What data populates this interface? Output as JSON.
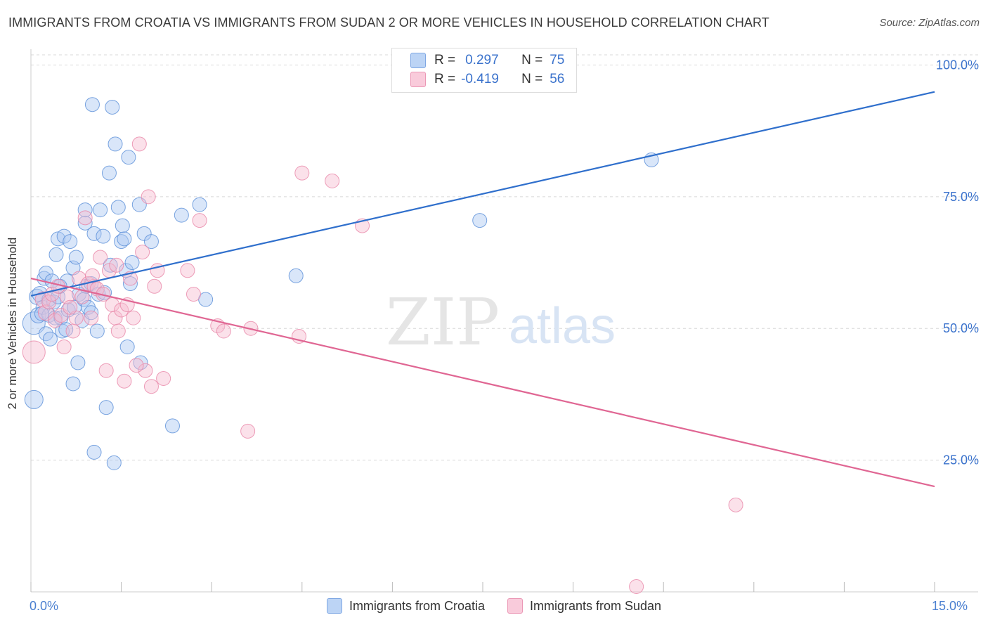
{
  "title": "IMMIGRANTS FROM CROATIA VS IMMIGRANTS FROM SUDAN 2 OR MORE VEHICLES IN HOUSEHOLD CORRELATION CHART",
  "source": "Source: ZipAtlas.com",
  "watermark": {
    "zip": "ZIP",
    "atlas": "atlas"
  },
  "colors": {
    "croatia_fill": "#aac8f2",
    "croatia_stroke": "#5a8fd8",
    "croatia_line": "#2f6fcc",
    "sudan_fill": "#f7bcd0",
    "sudan_stroke": "#e886a8",
    "sudan_line": "#e06693",
    "accent_text": "#3a72cc",
    "grid": "#d8d8d8"
  },
  "correlation_box": {
    "rows": [
      {
        "r_label": "R =",
        "r_value": "0.297",
        "n_label": "N =",
        "n_value": "75"
      },
      {
        "r_label": "R =",
        "r_value": "-0.419",
        "n_label": "N =",
        "n_value": "56"
      }
    ]
  },
  "legend": {
    "croatia": "Immigrants from Croatia",
    "sudan": "Immigrants from Sudan"
  },
  "chart_data": {
    "type": "scatter",
    "title": "IMMIGRANTS FROM CROATIA VS IMMIGRANTS FROM SUDAN 2 OR MORE VEHICLES IN HOUSEHOLD CORRELATION CHART",
    "xlabel": "",
    "ylabel": "2 or more Vehicles in Household",
    "xlim": [
      0,
      15
    ],
    "ylim": [
      0,
      103
    ],
    "x_tick_labels": {
      "min": "0.0%",
      "max": "15.0%"
    },
    "y_ticks": [
      25,
      50,
      75,
      100
    ],
    "y_tick_labels": [
      "25.0%",
      "50.0%",
      "75.0%",
      "100.0%"
    ],
    "series": [
      {
        "name": "Immigrants from Croatia",
        "R": 0.297,
        "N": 75,
        "trend": {
          "x0": 0,
          "y0": 56.2,
          "x1": 15,
          "y1": 94.9
        },
        "points": [
          {
            "x": 0.05,
            "y": 51.0,
            "s": 26
          },
          {
            "x": 0.05,
            "y": 36.5,
            "s": 20
          },
          {
            "x": 0.1,
            "y": 56.0,
            "s": 16
          },
          {
            "x": 0.12,
            "y": 52.5,
            "s": 16
          },
          {
            "x": 0.15,
            "y": 56.5,
            "s": 16
          },
          {
            "x": 0.2,
            "y": 54.0,
            "s": 14
          },
          {
            "x": 0.22,
            "y": 59.5,
            "s": 14
          },
          {
            "x": 0.25,
            "y": 60.5,
            "s": 14
          },
          {
            "x": 0.25,
            "y": 49.0,
            "s": 14
          },
          {
            "x": 0.3,
            "y": 52.5,
            "s": 14
          },
          {
            "x": 0.3,
            "y": 55.5,
            "s": 14
          },
          {
            "x": 0.32,
            "y": 48.0,
            "s": 14
          },
          {
            "x": 0.35,
            "y": 59.0,
            "s": 14
          },
          {
            "x": 0.38,
            "y": 55.0,
            "s": 14
          },
          {
            "x": 0.4,
            "y": 52.0,
            "s": 14
          },
          {
            "x": 0.42,
            "y": 64.0,
            "s": 14
          },
          {
            "x": 0.45,
            "y": 67.0,
            "s": 14
          },
          {
            "x": 0.45,
            "y": 56.0,
            "s": 14
          },
          {
            "x": 0.5,
            "y": 52.0,
            "s": 14
          },
          {
            "x": 0.52,
            "y": 49.5,
            "s": 14
          },
          {
            "x": 0.55,
            "y": 67.5,
            "s": 14
          },
          {
            "x": 0.6,
            "y": 59.0,
            "s": 14
          },
          {
            "x": 0.62,
            "y": 53.5,
            "s": 14
          },
          {
            "x": 0.65,
            "y": 66.5,
            "s": 14
          },
          {
            "x": 0.7,
            "y": 61.5,
            "s": 14
          },
          {
            "x": 0.7,
            "y": 39.5,
            "s": 14
          },
          {
            "x": 0.72,
            "y": 54.0,
            "s": 14
          },
          {
            "x": 0.75,
            "y": 63.5,
            "s": 14
          },
          {
            "x": 0.78,
            "y": 43.5,
            "s": 14
          },
          {
            "x": 0.8,
            "y": 56.5,
            "s": 14
          },
          {
            "x": 0.85,
            "y": 51.5,
            "s": 14
          },
          {
            "x": 0.88,
            "y": 55.5,
            "s": 14
          },
          {
            "x": 0.9,
            "y": 70.0,
            "s": 14
          },
          {
            "x": 0.9,
            "y": 72.5,
            "s": 14
          },
          {
            "x": 0.92,
            "y": 58.0,
            "s": 14
          },
          {
            "x": 0.95,
            "y": 54.0,
            "s": 14
          },
          {
            "x": 1.0,
            "y": 53.0,
            "s": 14
          },
          {
            "x": 1.0,
            "y": 58.5,
            "s": 14
          },
          {
            "x": 1.02,
            "y": 92.5,
            "s": 14
          },
          {
            "x": 1.05,
            "y": 68.0,
            "s": 14
          },
          {
            "x": 1.05,
            "y": 26.5,
            "s": 14
          },
          {
            "x": 1.1,
            "y": 49.5,
            "s": 14
          },
          {
            "x": 1.12,
            "y": 56.5,
            "s": 14
          },
          {
            "x": 1.15,
            "y": 72.5,
            "s": 14
          },
          {
            "x": 1.2,
            "y": 67.5,
            "s": 14
          },
          {
            "x": 1.25,
            "y": 35.0,
            "s": 14
          },
          {
            "x": 1.3,
            "y": 79.5,
            "s": 14
          },
          {
            "x": 1.32,
            "y": 62.0,
            "s": 14
          },
          {
            "x": 1.35,
            "y": 92.0,
            "s": 14
          },
          {
            "x": 1.38,
            "y": 24.5,
            "s": 14
          },
          {
            "x": 1.4,
            "y": 85.0,
            "s": 14
          },
          {
            "x": 1.45,
            "y": 73.0,
            "s": 14
          },
          {
            "x": 1.5,
            "y": 66.5,
            "s": 14
          },
          {
            "x": 1.52,
            "y": 69.5,
            "s": 14
          },
          {
            "x": 1.55,
            "y": 67.0,
            "s": 14
          },
          {
            "x": 1.58,
            "y": 61.0,
            "s": 14
          },
          {
            "x": 1.6,
            "y": 46.5,
            "s": 14
          },
          {
            "x": 1.62,
            "y": 82.5,
            "s": 14
          },
          {
            "x": 1.65,
            "y": 58.5,
            "s": 14
          },
          {
            "x": 1.68,
            "y": 62.5,
            "s": 14
          },
          {
            "x": 1.8,
            "y": 73.5,
            "s": 14
          },
          {
            "x": 1.82,
            "y": 43.5,
            "s": 14
          },
          {
            "x": 1.88,
            "y": 68.0,
            "s": 14
          },
          {
            "x": 2.0,
            "y": 66.5,
            "s": 14
          },
          {
            "x": 2.35,
            "y": 31.5,
            "s": 14
          },
          {
            "x": 2.5,
            "y": 71.5,
            "s": 14
          },
          {
            "x": 2.8,
            "y": 73.5,
            "s": 14
          },
          {
            "x": 2.9,
            "y": 55.5,
            "s": 14
          },
          {
            "x": 4.4,
            "y": 60.0,
            "s": 14
          },
          {
            "x": 7.45,
            "y": 70.5,
            "s": 14
          },
          {
            "x": 10.3,
            "y": 82.0,
            "s": 14
          },
          {
            "x": 0.58,
            "y": 49.8,
            "s": 14
          },
          {
            "x": 0.48,
            "y": 58.0,
            "s": 14
          },
          {
            "x": 1.22,
            "y": 56.8,
            "s": 14
          },
          {
            "x": 0.18,
            "y": 52.8,
            "s": 14
          }
        ]
      },
      {
        "name": "Immigrants from Sudan",
        "R": -0.419,
        "N": 56,
        "trend": {
          "x0": 0,
          "y0": 59.5,
          "x1": 15,
          "y1": 20.0
        },
        "points": [
          {
            "x": 0.05,
            "y": 45.5,
            "s": 26
          },
          {
            "x": 0.2,
            "y": 55.5,
            "s": 16
          },
          {
            "x": 0.25,
            "y": 53.0,
            "s": 16
          },
          {
            "x": 0.3,
            "y": 55.0,
            "s": 14
          },
          {
            "x": 0.35,
            "y": 56.5,
            "s": 14
          },
          {
            "x": 0.4,
            "y": 51.5,
            "s": 14
          },
          {
            "x": 0.45,
            "y": 58.0,
            "s": 14
          },
          {
            "x": 0.5,
            "y": 52.5,
            "s": 14
          },
          {
            "x": 0.55,
            "y": 46.5,
            "s": 14
          },
          {
            "x": 0.6,
            "y": 56.0,
            "s": 14
          },
          {
            "x": 0.7,
            "y": 49.5,
            "s": 14
          },
          {
            "x": 0.75,
            "y": 52.0,
            "s": 14
          },
          {
            "x": 0.8,
            "y": 59.5,
            "s": 14
          },
          {
            "x": 0.85,
            "y": 56.0,
            "s": 14
          },
          {
            "x": 0.9,
            "y": 71.0,
            "s": 14
          },
          {
            "x": 0.95,
            "y": 58.5,
            "s": 14
          },
          {
            "x": 1.0,
            "y": 52.0,
            "s": 14
          },
          {
            "x": 1.05,
            "y": 58.0,
            "s": 14
          },
          {
            "x": 1.1,
            "y": 57.5,
            "s": 14
          },
          {
            "x": 1.15,
            "y": 63.5,
            "s": 14
          },
          {
            "x": 1.2,
            "y": 56.5,
            "s": 14
          },
          {
            "x": 1.25,
            "y": 42.0,
            "s": 14
          },
          {
            "x": 1.3,
            "y": 61.0,
            "s": 14
          },
          {
            "x": 1.35,
            "y": 54.5,
            "s": 14
          },
          {
            "x": 1.4,
            "y": 52.0,
            "s": 14
          },
          {
            "x": 1.45,
            "y": 49.5,
            "s": 14
          },
          {
            "x": 1.5,
            "y": 53.5,
            "s": 14
          },
          {
            "x": 1.55,
            "y": 40.0,
            "s": 14
          },
          {
            "x": 1.6,
            "y": 54.5,
            "s": 14
          },
          {
            "x": 1.65,
            "y": 59.5,
            "s": 14
          },
          {
            "x": 1.7,
            "y": 52.0,
            "s": 14
          },
          {
            "x": 1.8,
            "y": 85.0,
            "s": 14
          },
          {
            "x": 1.85,
            "y": 64.5,
            "s": 14
          },
          {
            "x": 1.9,
            "y": 42.0,
            "s": 14
          },
          {
            "x": 1.95,
            "y": 75.0,
            "s": 14
          },
          {
            "x": 2.0,
            "y": 39.0,
            "s": 14
          },
          {
            "x": 2.1,
            "y": 61.0,
            "s": 14
          },
          {
            "x": 2.2,
            "y": 40.5,
            "s": 14
          },
          {
            "x": 2.6,
            "y": 61.0,
            "s": 14
          },
          {
            "x": 2.7,
            "y": 56.5,
            "s": 14
          },
          {
            "x": 2.8,
            "y": 70.5,
            "s": 14
          },
          {
            "x": 3.1,
            "y": 50.5,
            "s": 14
          },
          {
            "x": 3.2,
            "y": 49.5,
            "s": 14
          },
          {
            "x": 3.6,
            "y": 30.5,
            "s": 14
          },
          {
            "x": 3.65,
            "y": 50.0,
            "s": 14
          },
          {
            "x": 4.45,
            "y": 48.5,
            "s": 14
          },
          {
            "x": 4.5,
            "y": 79.5,
            "s": 14
          },
          {
            "x": 5.0,
            "y": 78.0,
            "s": 14
          },
          {
            "x": 5.5,
            "y": 69.5,
            "s": 14
          },
          {
            "x": 11.7,
            "y": 16.5,
            "s": 14
          },
          {
            "x": 10.05,
            "y": 1.0,
            "s": 14
          },
          {
            "x": 0.65,
            "y": 54.0,
            "s": 14
          },
          {
            "x": 1.02,
            "y": 60.0,
            "s": 14
          },
          {
            "x": 1.42,
            "y": 62.0,
            "s": 14
          },
          {
            "x": 2.05,
            "y": 58.0,
            "s": 14
          },
          {
            "x": 1.75,
            "y": 43.0,
            "s": 14
          }
        ]
      }
    ]
  }
}
